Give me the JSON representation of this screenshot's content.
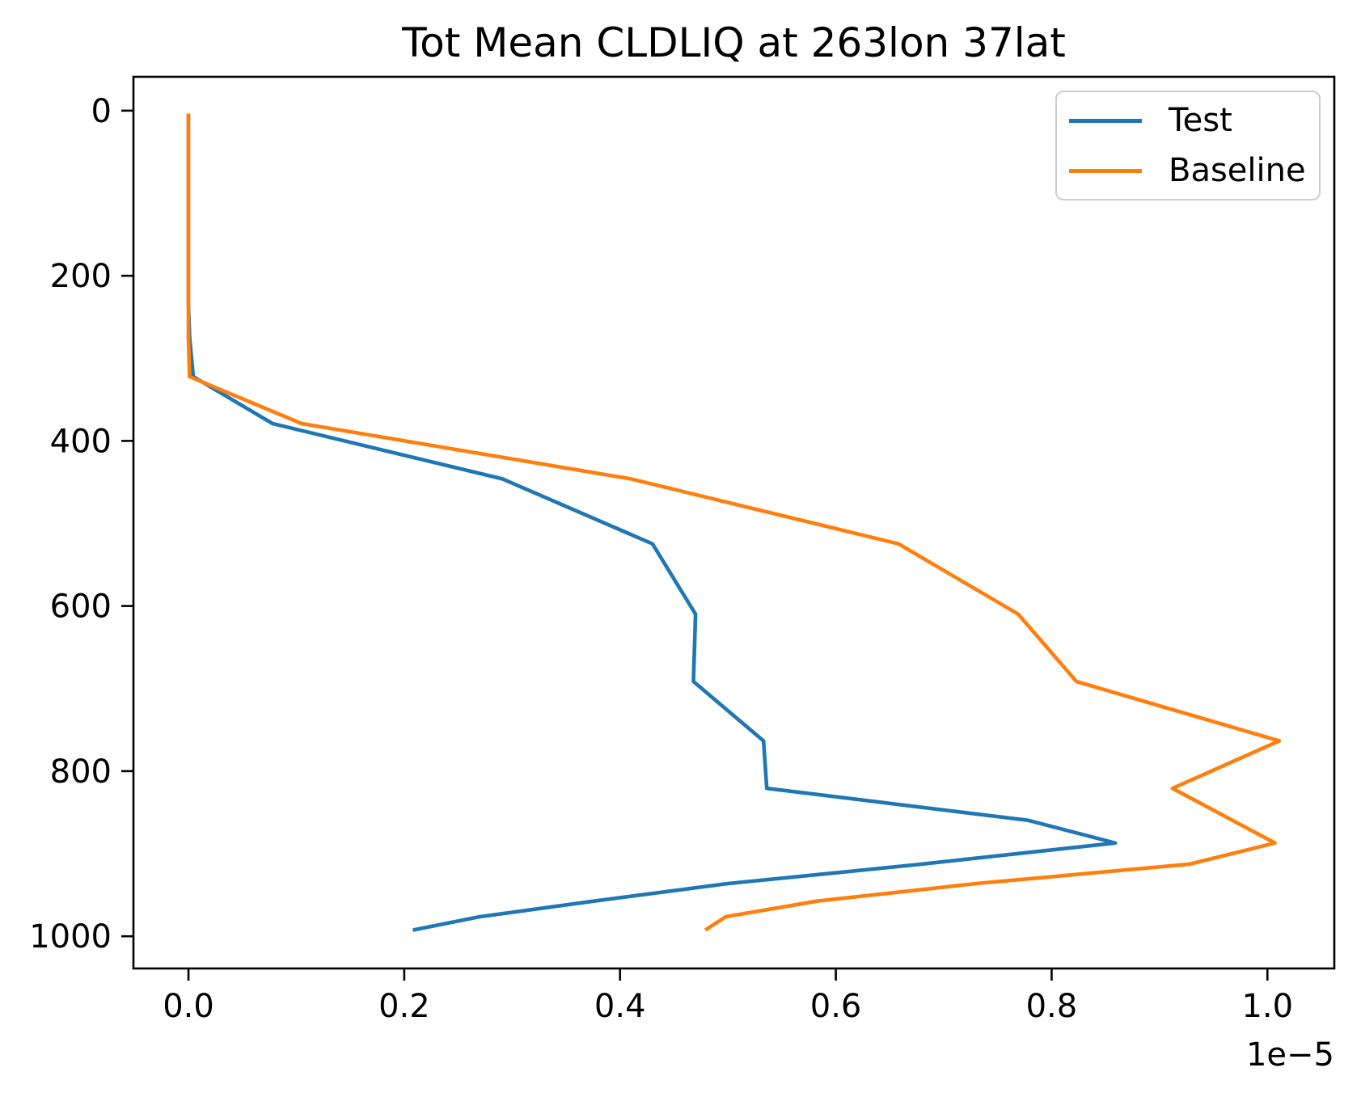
{
  "figure": {
    "title": "Tot Mean CLDLIQ at 263lon 37lat"
  },
  "legend": {
    "position": "upper right",
    "entries": [
      {
        "label": "Test",
        "color": "#1f77b4"
      },
      {
        "label": "Baseline",
        "color": "#ff7f0e"
      }
    ]
  },
  "chart_data": {
    "type": "line",
    "title": "Tot Mean CLDLIQ at 263lon 37lat",
    "x_offset_text": "1e−5",
    "x_scale": "1e-5",
    "x_ticks": [
      0.0,
      0.2,
      0.4,
      0.6,
      0.8,
      1.0
    ],
    "y_ticks": [
      0,
      200,
      400,
      600,
      800,
      1000
    ],
    "xlim": [
      -0.051,
      1.062
    ],
    "ylim_top": -41,
    "ylim_bottom": 1039,
    "y_axis_inverted": true,
    "grid": false,
    "legend_position": "upper right",
    "series": [
      {
        "name": "Test",
        "color": "#1f77b4",
        "points": [
          [
            0.0,
            3.6
          ],
          [
            0.0,
            54.6
          ],
          [
            0.0,
            103.3
          ],
          [
            0.0,
            142.9
          ],
          [
            0.0,
            197.9
          ],
          [
            0.0,
            232.8
          ],
          [
            0.001,
            273.9
          ],
          [
            0.0045,
            322.2
          ],
          [
            0.078,
            379.1
          ],
          [
            0.291,
            446.0
          ],
          [
            0.43,
            524.7
          ],
          [
            0.47,
            609.8
          ],
          [
            0.468,
            691.4
          ],
          [
            0.533,
            763.4
          ],
          [
            0.536,
            820.8
          ],
          [
            0.778,
            859.5
          ],
          [
            0.859,
            887.0
          ],
          [
            0.68,
            912.6
          ],
          [
            0.5,
            936.2
          ],
          [
            0.375,
            957.5
          ],
          [
            0.27,
            976.3
          ],
          [
            0.208,
            992.5
          ]
        ]
      },
      {
        "name": "Baseline",
        "color": "#ff7f0e",
        "points": [
          [
            0.0,
            3.6
          ],
          [
            0.0,
            54.6
          ],
          [
            0.0,
            103.3
          ],
          [
            0.0,
            142.9
          ],
          [
            0.0,
            197.9
          ],
          [
            0.0,
            232.8
          ],
          [
            0.0,
            273.9
          ],
          [
            0.001,
            322.2
          ],
          [
            0.105,
            379.1
          ],
          [
            0.41,
            446.0
          ],
          [
            0.658,
            524.7
          ],
          [
            0.769,
            609.8
          ],
          [
            0.823,
            691.4
          ],
          [
            1.011,
            763.4
          ],
          [
            0.912,
            820.8
          ],
          [
            1.007,
            887.0
          ],
          [
            0.928,
            912.6
          ],
          [
            0.73,
            936.2
          ],
          [
            0.582,
            957.5
          ],
          [
            0.498,
            976.3
          ],
          [
            0.479,
            992.5
          ]
        ]
      }
    ]
  }
}
